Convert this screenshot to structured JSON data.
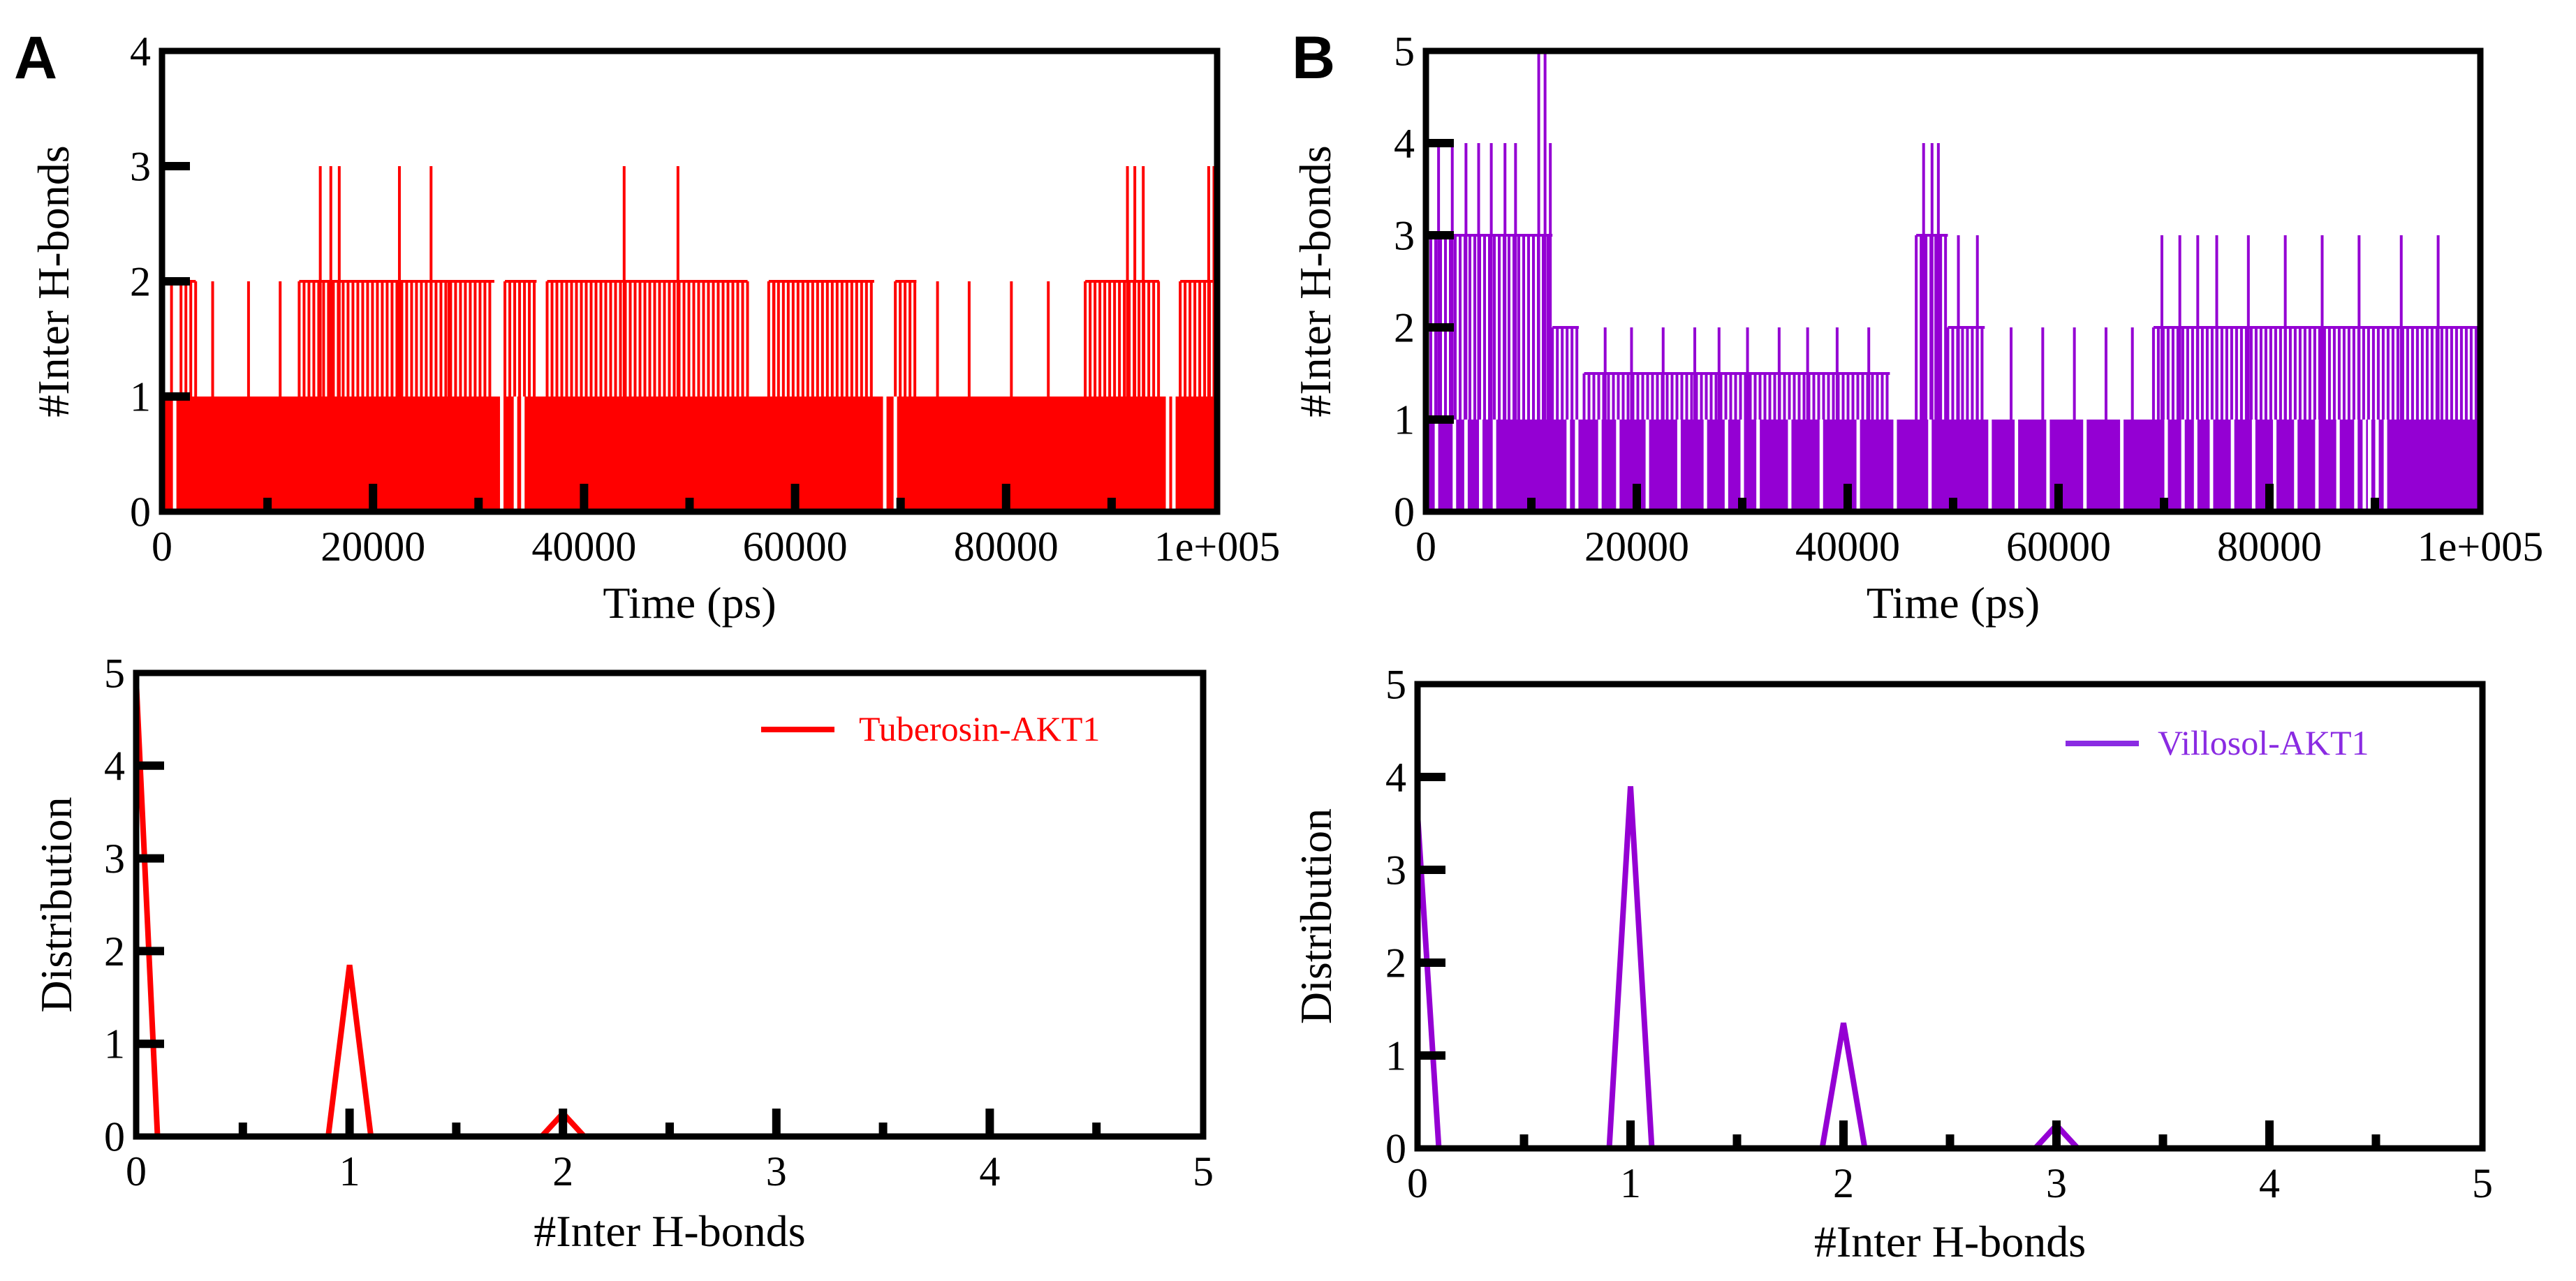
{
  "panels": {
    "A": {
      "letter": "A"
    },
    "B": {
      "letter": "B"
    }
  },
  "colors": {
    "tuberosin": "#ff0000",
    "villosol": "#9400d3",
    "villosol_legend": "#8a2be2",
    "axis": "#000000"
  },
  "chart_data": [
    {
      "id": "A-top",
      "type": "line",
      "style": "dense-time-series",
      "panel": "A",
      "title": "",
      "xlabel": "Time (ps)",
      "ylabel": "#Inter H-bonds",
      "xlim": [
        0,
        100000
      ],
      "ylim": [
        0,
        4
      ],
      "xtick_labels": [
        {
          "x": 0,
          "label": "0"
        },
        {
          "x": 20000,
          "label": "20000"
        },
        {
          "x": 40000,
          "label": "40000"
        },
        {
          "x": 60000,
          "label": "60000"
        },
        {
          "x": 80000,
          "label": "80000"
        },
        {
          "x": 100000,
          "label": "1e+005"
        }
      ],
      "ytick_labels": [
        {
          "y": 0,
          "label": "0"
        },
        {
          "y": 1,
          "label": "1"
        },
        {
          "y": 2,
          "label": "2"
        },
        {
          "y": 3,
          "label": "3"
        },
        {
          "y": 4,
          "label": "4"
        }
      ],
      "color": "#ff0000",
      "series": [
        {
          "name": "Tuberosin-AKT1",
          "baseline": {
            "x0": 0,
            "x1": 100000,
            "y": 1
          },
          "bands": [
            {
              "x0": 1800,
              "x1": 3200,
              "y": 2
            },
            {
              "x0": 13000,
              "x1": 31500,
              "y": 2
            },
            {
              "x0": 32500,
              "x1": 35500,
              "y": 2
            },
            {
              "x0": 36500,
              "x1": 55500,
              "y": 2
            },
            {
              "x0": 57500,
              "x1": 67500,
              "y": 2
            },
            {
              "x0": 69500,
              "x1": 71500,
              "y": 2
            },
            {
              "x0": 87500,
              "x1": 94500,
              "y": 2
            },
            {
              "x0": 96500,
              "x1": 99800,
              "y": 2
            }
          ],
          "spikes": [
            {
              "x": 900,
              "y": 2
            },
            {
              "x": 4800,
              "y": 2
            },
            {
              "x": 8200,
              "y": 2
            },
            {
              "x": 11200,
              "y": 2
            },
            {
              "x": 15000,
              "y": 3
            },
            {
              "x": 16000,
              "y": 3
            },
            {
              "x": 16800,
              "y": 3
            },
            {
              "x": 22500,
              "y": 3
            },
            {
              "x": 25500,
              "y": 3
            },
            {
              "x": 27200,
              "y": 2
            },
            {
              "x": 43800,
              "y": 3
            },
            {
              "x": 48900,
              "y": 3
            },
            {
              "x": 58000,
              "y": 2
            },
            {
              "x": 73500,
              "y": 2
            },
            {
              "x": 76500,
              "y": 2
            },
            {
              "x": 80500,
              "y": 2
            },
            {
              "x": 84000,
              "y": 2
            },
            {
              "x": 91500,
              "y": 3
            },
            {
              "x": 92200,
              "y": 3
            },
            {
              "x": 93000,
              "y": 3
            },
            {
              "x": 99200,
              "y": 3
            },
            {
              "x": 99700,
              "y": 3
            }
          ],
          "dips": [
            {
              "x": 1200,
              "y": 0
            },
            {
              "x": 32200,
              "y": 0
            },
            {
              "x": 33500,
              "y": 0
            },
            {
              "x": 34200,
              "y": 0
            },
            {
              "x": 68500,
              "y": 0
            },
            {
              "x": 69500,
              "y": 0
            },
            {
              "x": 95300,
              "y": 0
            },
            {
              "x": 95900,
              "y": 0
            }
          ]
        }
      ]
    },
    {
      "id": "B-top",
      "type": "line",
      "style": "dense-time-series",
      "panel": "B",
      "title": "",
      "xlabel": "Time (ps)",
      "ylabel": "#Inter H-bonds",
      "xlim": [
        0,
        100000
      ],
      "ylim": [
        0,
        5
      ],
      "xtick_labels": [
        {
          "x": 0,
          "label": "0"
        },
        {
          "x": 20000,
          "label": "20000"
        },
        {
          "x": 40000,
          "label": "40000"
        },
        {
          "x": 60000,
          "label": "60000"
        },
        {
          "x": 80000,
          "label": "80000"
        },
        {
          "x": 100000,
          "label": "1e+005"
        }
      ],
      "ytick_labels": [
        {
          "y": 0,
          "label": "0"
        },
        {
          "y": 1,
          "label": "1"
        },
        {
          "y": 2,
          "label": "2"
        },
        {
          "y": 3,
          "label": "3"
        },
        {
          "y": 4,
          "label": "4"
        },
        {
          "y": 5,
          "label": "5"
        }
      ],
      "color": "#9400d3",
      "series": [
        {
          "name": "Villosol-AKT1",
          "baseline": {
            "x0": 0,
            "x1": 100000,
            "y": 1
          },
          "bands": [
            {
              "x0": 0,
              "x1": 12000,
              "y": 3
            },
            {
              "x0": 12000,
              "x1": 14500,
              "y": 2
            },
            {
              "x0": 46500,
              "x1": 49500,
              "y": 3
            },
            {
              "x0": 49500,
              "x1": 53000,
              "y": 2
            },
            {
              "x0": 69000,
              "x1": 100000,
              "y": 2
            },
            {
              "x0": 15000,
              "x1": 44000,
              "y": 1.5
            }
          ],
          "spikes": [
            {
              "x": 1200,
              "y": 4
            },
            {
              "x": 2500,
              "y": 4
            },
            {
              "x": 3800,
              "y": 4
            },
            {
              "x": 5000,
              "y": 4
            },
            {
              "x": 6200,
              "y": 4
            },
            {
              "x": 7500,
              "y": 4
            },
            {
              "x": 8500,
              "y": 4
            },
            {
              "x": 10700,
              "y": 5
            },
            {
              "x": 11300,
              "y": 5
            },
            {
              "x": 11800,
              "y": 4
            },
            {
              "x": 17000,
              "y": 2
            },
            {
              "x": 19500,
              "y": 2
            },
            {
              "x": 22500,
              "y": 2
            },
            {
              "x": 25500,
              "y": 2
            },
            {
              "x": 27800,
              "y": 2
            },
            {
              "x": 30500,
              "y": 2
            },
            {
              "x": 33500,
              "y": 2
            },
            {
              "x": 36200,
              "y": 2
            },
            {
              "x": 39000,
              "y": 2
            },
            {
              "x": 42000,
              "y": 2
            },
            {
              "x": 47200,
              "y": 4
            },
            {
              "x": 48000,
              "y": 4
            },
            {
              "x": 48600,
              "y": 4
            },
            {
              "x": 50500,
              "y": 3
            },
            {
              "x": 52300,
              "y": 3
            },
            {
              "x": 55500,
              "y": 2
            },
            {
              "x": 58500,
              "y": 2
            },
            {
              "x": 61500,
              "y": 2
            },
            {
              "x": 64500,
              "y": 2
            },
            {
              "x": 67000,
              "y": 2
            },
            {
              "x": 69800,
              "y": 3
            },
            {
              "x": 71500,
              "y": 3
            },
            {
              "x": 73200,
              "y": 3
            },
            {
              "x": 75000,
              "y": 3
            },
            {
              "x": 78000,
              "y": 3
            },
            {
              "x": 81500,
              "y": 3
            },
            {
              "x": 85000,
              "y": 3
            },
            {
              "x": 88500,
              "y": 3
            },
            {
              "x": 92500,
              "y": 3
            },
            {
              "x": 96000,
              "y": 3
            }
          ],
          "dips": [
            {
              "x": 1000,
              "y": 0
            },
            {
              "x": 2700,
              "y": 0
            },
            {
              "x": 3800,
              "y": 0
            },
            {
              "x": 5200,
              "y": 0
            },
            {
              "x": 6500,
              "y": 0
            },
            {
              "x": 13500,
              "y": 0
            },
            {
              "x": 14300,
              "y": 0
            },
            {
              "x": 16500,
              "y": 0
            },
            {
              "x": 18200,
              "y": 0
            },
            {
              "x": 21000,
              "y": 0
            },
            {
              "x": 24000,
              "y": 0
            },
            {
              "x": 26500,
              "y": 0
            },
            {
              "x": 28500,
              "y": 0
            },
            {
              "x": 30000,
              "y": 0
            },
            {
              "x": 31500,
              "y": 0
            },
            {
              "x": 34500,
              "y": 0
            },
            {
              "x": 37500,
              "y": 0
            },
            {
              "x": 41000,
              "y": 0
            },
            {
              "x": 44500,
              "y": 0
            },
            {
              "x": 47800,
              "y": 0
            },
            {
              "x": 53500,
              "y": 0
            },
            {
              "x": 56000,
              "y": 0
            },
            {
              "x": 59000,
              "y": 0
            },
            {
              "x": 62500,
              "y": 0
            },
            {
              "x": 66000,
              "y": 0
            },
            {
              "x": 70200,
              "y": 0
            },
            {
              "x": 71800,
              "y": 0
            },
            {
              "x": 73000,
              "y": 0
            },
            {
              "x": 74500,
              "y": 0
            },
            {
              "x": 76500,
              "y": 0
            },
            {
              "x": 78500,
              "y": 0
            },
            {
              "x": 80500,
              "y": 0
            },
            {
              "x": 82500,
              "y": 0
            },
            {
              "x": 84500,
              "y": 0
            },
            {
              "x": 86500,
              "y": 0
            },
            {
              "x": 88200,
              "y": 0
            },
            {
              "x": 89000,
              "y": 0
            },
            {
              "x": 89500,
              "y": 0
            },
            {
              "x": 90200,
              "y": 0
            },
            {
              "x": 91000,
              "y": 0
            }
          ]
        }
      ]
    },
    {
      "id": "A-bottom",
      "type": "line",
      "panel": "A",
      "title": "",
      "xlabel": "#Inter H-bonds",
      "ylabel": "Distribution",
      "xlim": [
        0,
        5
      ],
      "ylim": [
        0,
        5
      ],
      "xtick_labels": [
        {
          "x": 0,
          "label": "0"
        },
        {
          "x": 1,
          "label": "1"
        },
        {
          "x": 2,
          "label": "2"
        },
        {
          "x": 3,
          "label": "3"
        },
        {
          "x": 4,
          "label": "4"
        },
        {
          "x": 5,
          "label": "5"
        }
      ],
      "ytick_labels": [
        {
          "y": 0,
          "label": "0"
        },
        {
          "y": 1,
          "label": "1"
        },
        {
          "y": 2,
          "label": "2"
        },
        {
          "y": 3,
          "label": "3"
        },
        {
          "y": 4,
          "label": "4"
        },
        {
          "y": 5,
          "label": "5"
        }
      ],
      "legend": {
        "label": "Tuberosin-AKT1",
        "placement": "top-right"
      },
      "color": "#ff0000",
      "series": [
        {
          "name": "Tuberosin-AKT1",
          "x": [
            0,
            0.1,
            0.9,
            1,
            1.1,
            1.9,
            2,
            2.1,
            5
          ],
          "y": [
            4.92,
            0,
            0,
            1.85,
            0,
            0,
            0.25,
            0,
            0
          ]
        }
      ]
    },
    {
      "id": "B-bottom",
      "type": "line",
      "panel": "B",
      "title": "",
      "xlabel": "#Inter H-bonds",
      "ylabel": "Distribution",
      "xlim": [
        0,
        5
      ],
      "ylim": [
        0,
        5
      ],
      "xtick_labels": [
        {
          "x": 0,
          "label": "0"
        },
        {
          "x": 1,
          "label": "1"
        },
        {
          "x": 2,
          "label": "2"
        },
        {
          "x": 3,
          "label": "3"
        },
        {
          "x": 4,
          "label": "4"
        },
        {
          "x": 5,
          "label": "5"
        }
      ],
      "ytick_labels": [
        {
          "y": 0,
          "label": "0"
        },
        {
          "y": 1,
          "label": "1"
        },
        {
          "y": 2,
          "label": "2"
        },
        {
          "y": 3,
          "label": "3"
        },
        {
          "y": 4,
          "label": "4"
        },
        {
          "y": 5,
          "label": "5"
        }
      ],
      "legend": {
        "label": "Villosol-AKT1",
        "placement": "top-right"
      },
      "color": "#9400d3",
      "series": [
        {
          "name": "Villosol-AKT1",
          "x": [
            0,
            0.1,
            0.9,
            1,
            1.1,
            1.9,
            2,
            2.1,
            2.9,
            3,
            3.1,
            5
          ],
          "y": [
            3.6,
            0,
            0,
            3.9,
            0,
            0,
            1.35,
            0,
            0,
            0.25,
            0,
            0
          ]
        }
      ]
    }
  ]
}
